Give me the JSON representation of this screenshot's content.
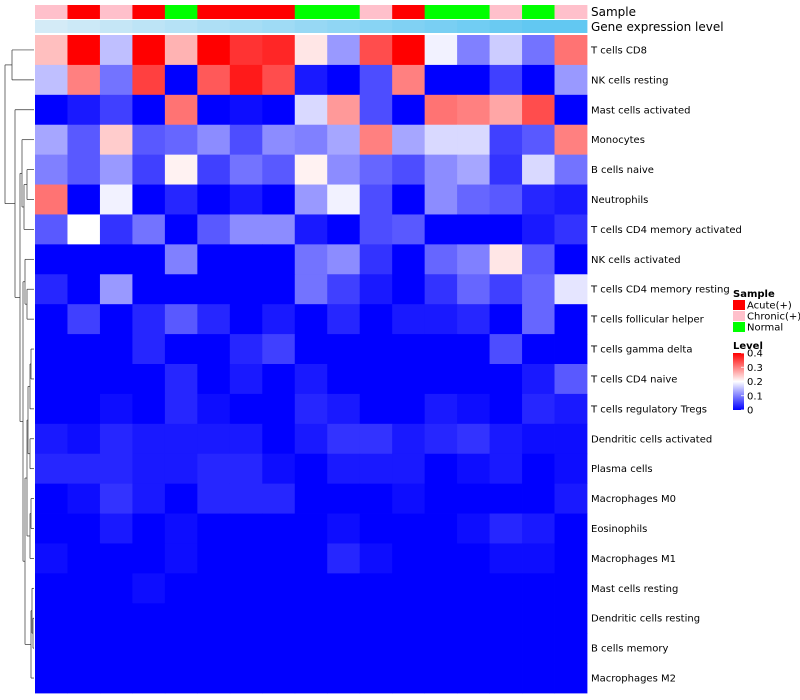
{
  "chart_data": {
    "type": "heatmap",
    "title": "",
    "annotation_tracks": [
      "Sample",
      "Gene expression level"
    ],
    "columns": {
      "sample": [
        "Chronic(+)",
        "Acute(+)",
        "Chronic(+)",
        "Acute(+)",
        "Normal",
        "Acute(+)",
        "Acute(+)",
        "Acute(+)",
        "Normal",
        "Normal",
        "Chronic(+)",
        "Acute(+)",
        "Normal",
        "Normal",
        "Chronic(+)",
        "Normal",
        "Chronic(+)"
      ],
      "gene_expression_level": [
        0.1,
        0.12,
        0.14,
        0.16,
        0.18,
        0.2,
        0.22,
        0.24,
        0.26,
        0.28,
        0.3,
        0.32,
        0.34,
        0.36,
        0.38,
        0.4,
        0.4
      ]
    },
    "rows": [
      "T cells CD8",
      "NK cells resting",
      "Mast cells activated",
      "Monocytes",
      "B cells naive",
      "Neutrophils",
      "T cells CD4 memory activated",
      "NK cells activated",
      "T cells CD4 memory resting",
      "T cells follicular helper",
      "T cells gamma delta",
      "T cells CD4 naive",
      "T cells regulatory  Tregs",
      "Dendritic cells activated",
      "Plasma cells",
      "Macrophages M0",
      "Eosinophils",
      "Macrophages M1",
      "Mast cells resting",
      "Dendritic cells resting",
      "B cells memory",
      "Macrophages M2"
    ],
    "values": [
      [
        0.25,
        0.4,
        0.15,
        0.4,
        0.26,
        0.4,
        0.36,
        0.37,
        0.22,
        0.12,
        0.34,
        0.4,
        0.19,
        0.1,
        0.16,
        0.09,
        0.31
      ],
      [
        0.15,
        0.3,
        0.09,
        0.35,
        0.0,
        0.33,
        0.38,
        0.34,
        0.02,
        0.0,
        0.06,
        0.3,
        0.0,
        0.0,
        0.05,
        0.0,
        0.12
      ],
      [
        0.0,
        0.02,
        0.05,
        0.0,
        0.31,
        0.0,
        0.01,
        0.0,
        0.17,
        0.28,
        0.06,
        0.0,
        0.31,
        0.3,
        0.27,
        0.34,
        0.0
      ],
      [
        0.13,
        0.07,
        0.24,
        0.07,
        0.08,
        0.11,
        0.06,
        0.11,
        0.1,
        0.13,
        0.3,
        0.13,
        0.17,
        0.17,
        0.05,
        0.07,
        0.3
      ],
      [
        0.1,
        0.07,
        0.12,
        0.05,
        0.21,
        0.05,
        0.09,
        0.07,
        0.21,
        0.11,
        0.08,
        0.06,
        0.11,
        0.13,
        0.04,
        0.17,
        0.09
      ],
      [
        0.31,
        0.0,
        0.19,
        0.0,
        0.03,
        0.0,
        0.02,
        0.0,
        0.12,
        0.19,
        0.06,
        0.0,
        0.11,
        0.08,
        0.07,
        0.03,
        0.02
      ],
      [
        0.07,
        0.2,
        0.04,
        0.09,
        0.0,
        0.07,
        0.11,
        0.11,
        0.02,
        0.0,
        0.06,
        0.07,
        0.0,
        0.0,
        0.0,
        0.02,
        0.04
      ],
      [
        0.0,
        0.0,
        0.0,
        0.0,
        0.1,
        0.0,
        0.0,
        0.0,
        0.09,
        0.11,
        0.04,
        0.0,
        0.08,
        0.1,
        0.22,
        0.07,
        0.0
      ],
      [
        0.03,
        0.0,
        0.12,
        0.0,
        0.0,
        0.0,
        0.0,
        0.0,
        0.09,
        0.05,
        0.02,
        0.0,
        0.04,
        0.08,
        0.05,
        0.08,
        0.18
      ],
      [
        0.0,
        0.05,
        0.0,
        0.03,
        0.07,
        0.03,
        0.0,
        0.02,
        0.0,
        0.03,
        0.0,
        0.02,
        0.02,
        0.03,
        0.0,
        0.08,
        0.0
      ],
      [
        0.0,
        0.0,
        0.0,
        0.03,
        0.0,
        0.0,
        0.03,
        0.05,
        0.0,
        0.0,
        0.0,
        0.0,
        0.0,
        0.0,
        0.06,
        0.0,
        0.0
      ],
      [
        0.0,
        0.0,
        0.0,
        0.0,
        0.03,
        0.0,
        0.02,
        0.0,
        0.02,
        0.0,
        0.0,
        0.0,
        0.0,
        0.0,
        0.0,
        0.02,
        0.07
      ],
      [
        0.0,
        0.0,
        0.01,
        0.0,
        0.03,
        0.01,
        0.0,
        0.0,
        0.03,
        0.02,
        0.0,
        0.0,
        0.02,
        0.01,
        0.0,
        0.03,
        0.02
      ],
      [
        0.02,
        0.01,
        0.03,
        0.02,
        0.02,
        0.02,
        0.02,
        0.0,
        0.02,
        0.04,
        0.04,
        0.02,
        0.03,
        0.04,
        0.02,
        0.01,
        0.01
      ],
      [
        0.03,
        0.03,
        0.03,
        0.02,
        0.02,
        0.03,
        0.03,
        0.01,
        0.0,
        0.02,
        0.02,
        0.02,
        0.0,
        0.01,
        0.02,
        0.0,
        0.01
      ],
      [
        0.0,
        0.01,
        0.04,
        0.02,
        0.0,
        0.03,
        0.03,
        0.03,
        0.0,
        0.0,
        0.0,
        0.01,
        0.0,
        0.0,
        0.0,
        0.0,
        0.02
      ],
      [
        0.0,
        0.0,
        0.02,
        0.0,
        0.01,
        0.0,
        0.0,
        0.0,
        0.0,
        0.01,
        0.0,
        0.0,
        0.0,
        0.01,
        0.03,
        0.02,
        0.0
      ],
      [
        0.01,
        0.0,
        0.0,
        0.0,
        0.01,
        0.0,
        0.0,
        0.0,
        0.0,
        0.03,
        0.01,
        0.0,
        0.0,
        0.0,
        0.01,
        0.01,
        0.0
      ],
      [
        0.0,
        0.0,
        0.0,
        0.01,
        0.0,
        0.0,
        0.0,
        0.0,
        0.0,
        0.0,
        0.0,
        0.0,
        0.0,
        0.0,
        0.0,
        0.0,
        0.0
      ],
      [
        0.0,
        0.0,
        0.0,
        0.0,
        0.0,
        0.0,
        0.0,
        0.0,
        0.0,
        0.0,
        0.0,
        0.0,
        0.0,
        0.0,
        0.0,
        0.0,
        0.0
      ],
      [
        0.0,
        0.0,
        0.0,
        0.0,
        0.0,
        0.0,
        0.0,
        0.0,
        0.0,
        0.0,
        0.0,
        0.0,
        0.0,
        0.0,
        0.0,
        0.0,
        0.0
      ],
      [
        0.0,
        0.0,
        0.0,
        0.0,
        0.0,
        0.0,
        0.0,
        0.0,
        0.0,
        0.0,
        0.0,
        0.0,
        0.0,
        0.0,
        0.0,
        0.0,
        0.0
      ]
    ],
    "value_range": [
      0,
      0.4
    ],
    "color_scale": [
      "#0000ff",
      "#ffffff",
      "#ff0000"
    ],
    "legend": {
      "sample_title": "Sample",
      "sample_entries": [
        {
          "label": "Acute(+)",
          "color": "#ff0000"
        },
        {
          "label": "Chronic(+)",
          "color": "#ffc0cb"
        },
        {
          "label": "Normal",
          "color": "#00ff00"
        }
      ],
      "level_title": "Level",
      "level_ticks": [
        0,
        0.1,
        0.2,
        0.3,
        0.4
      ],
      "level_tick_labels": [
        "0",
        "0.1",
        "0.2",
        "0.3",
        "0.4"
      ],
      "placement": "right"
    },
    "expression_level_colors": [
      "#d4ebf7",
      "#62c8f2"
    ],
    "row_dendrogram": true
  }
}
